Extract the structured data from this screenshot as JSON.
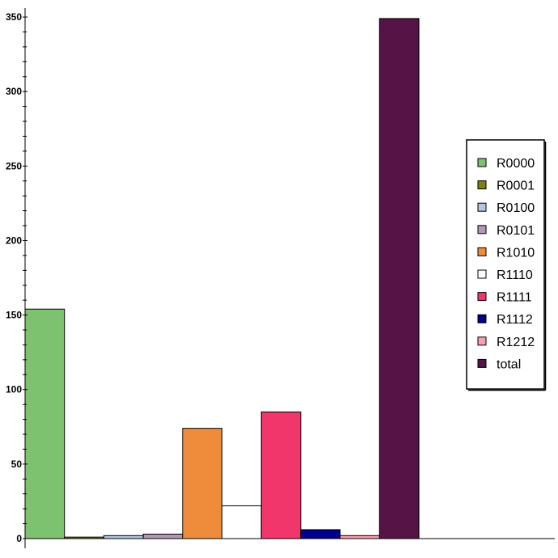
{
  "chart_data": {
    "type": "bar",
    "title": "",
    "xlabel": "",
    "ylabel": "",
    "ylim": [
      0,
      356
    ],
    "y_ticks": [
      0,
      50,
      100,
      150,
      200,
      250,
      300,
      350
    ],
    "grid": false,
    "legend_position": "right",
    "series": [
      {
        "name": "R0000",
        "value": 154,
        "color": "#7dc36f"
      },
      {
        "name": "R0001",
        "value": 1,
        "color": "#7f7f16"
      },
      {
        "name": "R0100",
        "value": 2,
        "color": "#b4c6e3"
      },
      {
        "name": "R0101",
        "value": 3,
        "color": "#b496b6"
      },
      {
        "name": "R1010",
        "value": 74,
        "color": "#ef8c3c"
      },
      {
        "name": "R1110",
        "value": 22,
        "color": "#ffffff"
      },
      {
        "name": "R1111",
        "value": 85,
        "color": "#f0366b"
      },
      {
        "name": "R1112",
        "value": 6,
        "color": "#00008c"
      },
      {
        "name": "R1212",
        "value": 2,
        "color": "#f8a0b2"
      },
      {
        "name": "total",
        "value": 349,
        "color": "#551346"
      }
    ]
  }
}
